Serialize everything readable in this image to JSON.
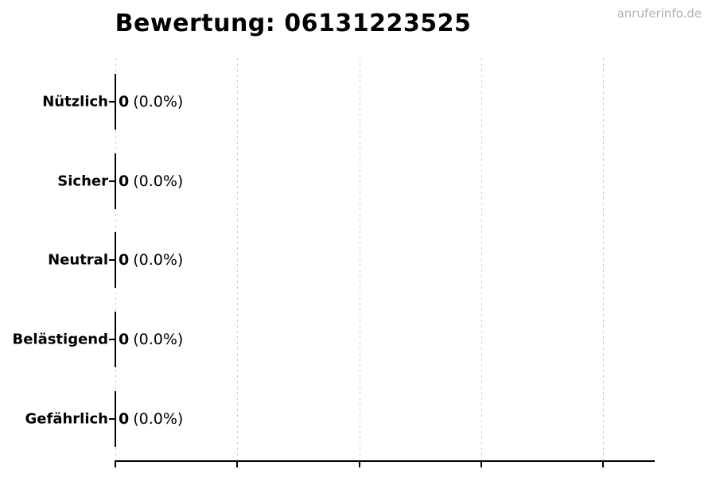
{
  "header": {
    "title": "Bewertung: 06131223525",
    "watermark": "anruferinfo.de"
  },
  "chart_data": {
    "type": "bar",
    "orientation": "horizontal",
    "title": "Bewertung: 06131223525",
    "categories": [
      "Nützlich",
      "Sicher",
      "Neutral",
      "Belästigend",
      "Gefährlich"
    ],
    "values": [
      0,
      0,
      0,
      0,
      0
    ],
    "percent_labels": [
      "(0.0%)",
      "(0.0%)",
      "(0.0%)",
      "(0.0%)",
      "(0.0%)"
    ],
    "value_label_texts": [
      "0 (0.0%)",
      "0 (0.0%)",
      "0 (0.0%)",
      "0 (0.0%)",
      "0 (0.0%)"
    ],
    "xlabel": "",
    "ylabel": "",
    "xlim": [
      0,
      4.4
    ],
    "xticks": [
      0,
      1,
      2,
      3,
      4
    ],
    "xtick_labels_visible": false,
    "grid": {
      "axis": "x",
      "style": "dashed",
      "color": "#cccccc"
    },
    "bar_color": "#000000",
    "axis_color": "#000000",
    "legend_position": "none"
  },
  "colors": {
    "text": "#000000",
    "watermark": "#b3b3b3",
    "gridline": "#cccccc",
    "axis": "#000000",
    "background": "#ffffff"
  }
}
